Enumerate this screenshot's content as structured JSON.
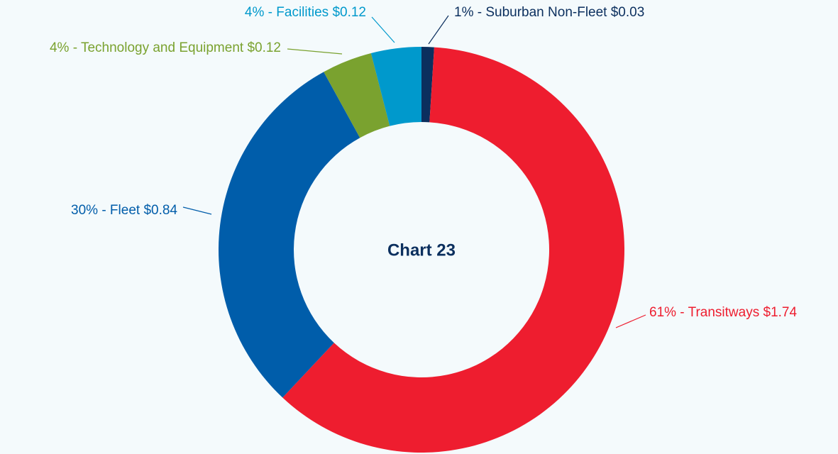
{
  "chart_data": {
    "type": "donut",
    "title": "Chart 23",
    "labels": [
      "1% - Suburban Non-Fleet $0.03",
      "61% - Transitways $1.74",
      "30% - Fleet $0.84",
      "4% - Technology and Equipment $0.12",
      "4% - Facilities $0.12"
    ],
    "values": [
      1,
      61,
      30,
      4,
      4
    ],
    "colors": [
      "#0b2f5e",
      "#ee1d2f",
      "#005daa",
      "#7aa22f",
      "#0099cc"
    ]
  }
}
